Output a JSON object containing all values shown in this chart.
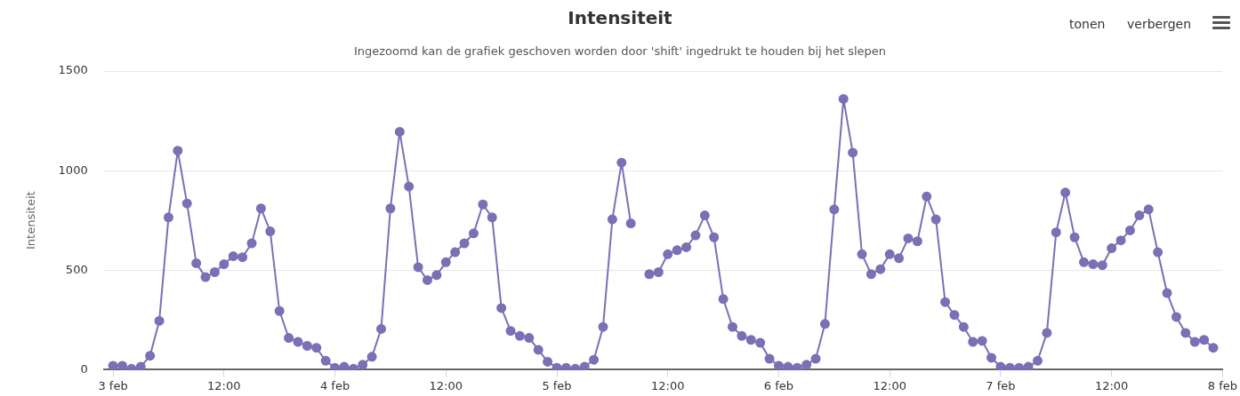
{
  "chart_data": {
    "type": "line",
    "title": "Intensiteit",
    "subtitle": "Ingezoomd kan de grafiek geschoven worden door 'shift' ingedrukt te houden bij het slepen",
    "ylabel": "Intensiteit",
    "annotations": [
      "tonen",
      "verbergen"
    ],
    "x": [
      "--02-03T00:00",
      "--02-03T01:00",
      "--02-03T02:00",
      "--02-03T03:00",
      "--02-03T04:00",
      "--02-03T05:00",
      "--02-03T06:00",
      "--02-03T07:00",
      "--02-03T08:00",
      "--02-03T09:00",
      "--02-03T10:00",
      "--02-03T11:00",
      "--02-03T12:00",
      "--02-03T13:00",
      "--02-03T14:00",
      "--02-03T15:00",
      "--02-03T16:00",
      "--02-03T17:00",
      "--02-03T18:00",
      "--02-03T19:00",
      "--02-03T20:00",
      "--02-03T21:00",
      "--02-03T22:00",
      "--02-03T23:00",
      "--02-04T00:00",
      "--02-04T01:00",
      "--02-04T02:00",
      "--02-04T03:00",
      "--02-04T04:00",
      "--02-04T05:00",
      "--02-04T06:00",
      "--02-04T07:00",
      "--02-04T08:00",
      "--02-04T09:00",
      "--02-04T10:00",
      "--02-04T11:00",
      "--02-04T12:00",
      "--02-04T13:00",
      "--02-04T14:00",
      "--02-04T15:00",
      "--02-04T16:00",
      "--02-04T17:00",
      "--02-04T18:00",
      "--02-04T19:00",
      "--02-04T20:00",
      "--02-04T21:00",
      "--02-04T22:00",
      "--02-04T23:00",
      "--02-05T00:00",
      "--02-05T01:00",
      "--02-05T02:00",
      "--02-05T03:00",
      "--02-05T04:00",
      "--02-05T05:00",
      "--02-05T06:00",
      "--02-05T07:00",
      "--02-05T08:00",
      "--02-05T09:00",
      "--02-05T10:00",
      "--02-05T11:00",
      "--02-05T12:00",
      "--02-05T13:00",
      "--02-05T14:00",
      "--02-05T15:00",
      "--02-05T16:00",
      "--02-05T17:00",
      "--02-05T18:00",
      "--02-05T19:00",
      "--02-05T20:00",
      "--02-05T21:00",
      "--02-05T22:00",
      "--02-05T23:00",
      "--02-06T00:00",
      "--02-06T01:00",
      "--02-06T02:00",
      "--02-06T03:00",
      "--02-06T04:00",
      "--02-06T05:00",
      "--02-06T06:00",
      "--02-06T07:00",
      "--02-06T08:00",
      "--02-06T09:00",
      "--02-06T10:00",
      "--02-06T11:00",
      "--02-06T12:00",
      "--02-06T13:00",
      "--02-06T14:00",
      "--02-06T15:00",
      "--02-06T16:00",
      "--02-06T17:00",
      "--02-06T18:00",
      "--02-06T19:00",
      "--02-06T20:00",
      "--02-06T21:00",
      "--02-06T22:00",
      "--02-06T23:00",
      "--02-07T00:00",
      "--02-07T01:00",
      "--02-07T02:00",
      "--02-07T03:00",
      "--02-07T04:00",
      "--02-07T05:00",
      "--02-07T06:00",
      "--02-07T07:00",
      "--02-07T08:00",
      "--02-07T09:00",
      "--02-07T10:00",
      "--02-07T11:00",
      "--02-07T12:00",
      "--02-07T13:00",
      "--02-07T14:00",
      "--02-07T15:00",
      "--02-07T16:00",
      "--02-07T17:00",
      "--02-07T18:00",
      "--02-07T19:00",
      "--02-07T20:00",
      "--02-07T21:00",
      "--02-07T22:00",
      "--02-07T23:00"
    ],
    "series": [
      {
        "color": "#7b6fb5",
        "values": [
          20,
          20,
          5,
          15,
          70,
          245,
          765,
          1100,
          835,
          535,
          465,
          490,
          530,
          570,
          565,
          635,
          810,
          695,
          295,
          160,
          140,
          120,
          110,
          45,
          10,
          15,
          5,
          25,
          65,
          205,
          810,
          1195,
          920,
          515,
          450,
          475,
          540,
          590,
          635,
          685,
          830,
          765,
          310,
          195,
          170,
          160,
          100,
          40,
          10,
          10,
          5,
          15,
          50,
          215,
          755,
          1040,
          735,
          null,
          480,
          490,
          580,
          600,
          615,
          675,
          775,
          665,
          355,
          215,
          170,
          150,
          135,
          55,
          20,
          15,
          10,
          25,
          55,
          230,
          805,
          1360,
          1090,
          580,
          480,
          505,
          580,
          560,
          660,
          645,
          870,
          755,
          340,
          275,
          215,
          140,
          145,
          60,
          15,
          10,
          10,
          15,
          45,
          185,
          690,
          890,
          665,
          540,
          530,
          525,
          610,
          650,
          700,
          775,
          805,
          590,
          385,
          265,
          185,
          140,
          150,
          110
        ]
      }
    ],
    "xlim": [
      "--02-02T23:00",
      "--02-08T00:00"
    ],
    "xticks": [
      {
        "value": "--02-03T00:00",
        "label": "3 feb"
      },
      {
        "value": "--02-03T12:00",
        "label": "12:00"
      },
      {
        "value": "--02-04T00:00",
        "label": "4 feb"
      },
      {
        "value": "--02-04T12:00",
        "label": "12:00"
      },
      {
        "value": "--02-05T00:00",
        "label": "5 feb"
      },
      {
        "value": "--02-05T12:00",
        "label": "12:00"
      },
      {
        "value": "--02-06T00:00",
        "label": "6 feb"
      },
      {
        "value": "--02-06T12:00",
        "label": "12:00"
      },
      {
        "value": "--02-07T00:00",
        "label": "7 feb"
      },
      {
        "value": "--02-07T12:00",
        "label": "12:00"
      },
      {
        "value": "--02-08T00:00",
        "label": "8 feb"
      }
    ],
    "ylim": [
      0,
      1500
    ],
    "yticks": [
      0,
      500,
      1000,
      1500
    ],
    "grid": "y",
    "legend": false,
    "marker": "circle",
    "line_style": "solid"
  }
}
